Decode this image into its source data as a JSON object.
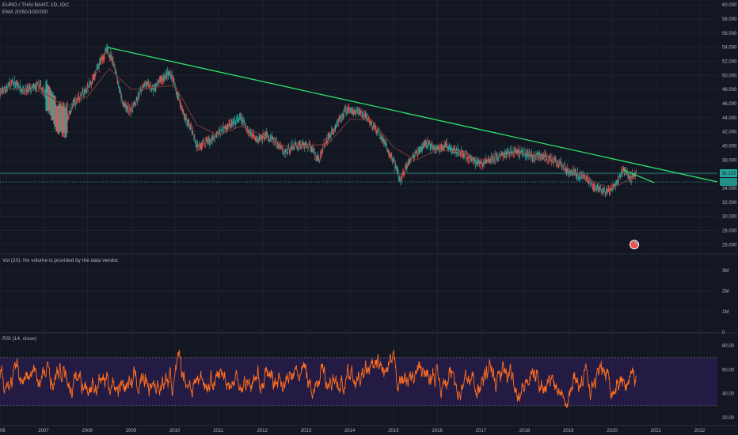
{
  "header": {
    "title": "EURO / THAI BAHT, 1D, IDC",
    "indicator": "EMA 20/50/100/200"
  },
  "volume_pane": {
    "label": "Vol (20): No volume is provided by the data vendor.",
    "ticks": [
      "3M",
      "2M",
      "1M",
      "0"
    ]
  },
  "rsi_pane": {
    "label": "RSI (14, close)",
    "ticks": [
      "80.00",
      "60.00",
      "40.00",
      "20.00"
    ]
  },
  "colors": {
    "background": "#131722",
    "trendline": "#2fe06a",
    "candle_up": "#26a69a",
    "candle_down": "#ef5350",
    "rsi": "#ff6d1f",
    "rsi_band": "#2a1d4f",
    "price_badge": "#26a69a"
  },
  "chart_data": [
    {
      "type": "candlestick",
      "title": "EURO / THAI BAHT, 1D, IDC",
      "xlabel": "",
      "ylabel": "",
      "x_ticks": [
        "06",
        "2007",
        "2008",
        "2009",
        "2010",
        "2011",
        "2012",
        "2013",
        "2014",
        "2015",
        "2016",
        "2017",
        "2018",
        "2019",
        "2020",
        "2021",
        "2022"
      ],
      "y_ticks": [
        "60.000",
        "58.000",
        "56.000",
        "54.000",
        "52.000",
        "50.000",
        "48.000",
        "46.000",
        "44.000",
        "42.000",
        "40.000",
        "38.000",
        "36.000",
        "34.000",
        "32.000",
        "30.000",
        "28.000",
        "26.000"
      ],
      "xlim": [
        2006.0,
        2022.4
      ],
      "ylim": [
        24.8,
        60.7
      ],
      "last_price": "36.133",
      "price_path": [
        [
          2006.0,
          47.5
        ],
        [
          2006.3,
          49.0
        ],
        [
          2006.6,
          47.8
        ],
        [
          2006.9,
          48.6
        ],
        [
          2007.1,
          47.0
        ],
        [
          2007.3,
          44.0
        ],
        [
          2007.5,
          43.6
        ],
        [
          2007.7,
          46.2
        ],
        [
          2007.9,
          47.4
        ],
        [
          2008.1,
          49.0
        ],
        [
          2008.3,
          52.0
        ],
        [
          2008.45,
          53.6
        ],
        [
          2008.6,
          52.0
        ],
        [
          2008.8,
          46.0
        ],
        [
          2008.95,
          45.0
        ],
        [
          2009.1,
          46.0
        ],
        [
          2009.3,
          49.0
        ],
        [
          2009.5,
          48.0
        ],
        [
          2009.7,
          49.5
        ],
        [
          2009.9,
          50.4
        ],
        [
          2010.0,
          48.5
        ],
        [
          2010.2,
          44.5
        ],
        [
          2010.4,
          42.0
        ],
        [
          2010.5,
          40.0
        ],
        [
          2010.7,
          40.5
        ],
        [
          2010.9,
          41.0
        ],
        [
          2011.1,
          42.5
        ],
        [
          2011.3,
          43.0
        ],
        [
          2011.5,
          44.0
        ],
        [
          2011.7,
          42.0
        ],
        [
          2011.9,
          41.0
        ],
        [
          2012.1,
          41.5
        ],
        [
          2012.3,
          40.6
        ],
        [
          2012.5,
          39.0
        ],
        [
          2012.7,
          40.0
        ],
        [
          2012.9,
          40.2
        ],
        [
          2013.1,
          40.0
        ],
        [
          2013.3,
          38.0
        ],
        [
          2013.4,
          40.0
        ],
        [
          2013.7,
          43.0
        ],
        [
          2013.9,
          45.0
        ],
        [
          2014.1,
          45.0
        ],
        [
          2014.3,
          44.5
        ],
        [
          2014.5,
          43.0
        ],
        [
          2014.7,
          41.5
        ],
        [
          2014.9,
          39.0
        ],
        [
          2015.05,
          37.0
        ],
        [
          2015.15,
          35.0
        ],
        [
          2015.35,
          38.0
        ],
        [
          2015.55,
          39.0
        ],
        [
          2015.75,
          40.5
        ],
        [
          2015.95,
          39.5
        ],
        [
          2016.2,
          40.0
        ],
        [
          2016.4,
          39.5
        ],
        [
          2016.6,
          38.8
        ],
        [
          2016.8,
          38.0
        ],
        [
          2017.0,
          37.5
        ],
        [
          2017.2,
          38.0
        ],
        [
          2017.4,
          38.5
        ],
        [
          2017.6,
          39.0
        ],
        [
          2017.8,
          39.3
        ],
        [
          2018.0,
          39.0
        ],
        [
          2018.2,
          38.5
        ],
        [
          2018.4,
          38.7
        ],
        [
          2018.6,
          38.0
        ],
        [
          2018.8,
          37.5
        ],
        [
          2019.0,
          36.5
        ],
        [
          2019.2,
          36.0
        ],
        [
          2019.4,
          35.5
        ],
        [
          2019.6,
          34.0
        ],
        [
          2019.8,
          33.5
        ],
        [
          2019.95,
          33.8
        ],
        [
          2020.1,
          34.5
        ],
        [
          2020.25,
          36.8
        ],
        [
          2020.4,
          35.5
        ],
        [
          2020.55,
          36.1
        ]
      ],
      "ema_path": [
        [
          2006.0,
          48.0
        ],
        [
          2006.5,
          48.2
        ],
        [
          2007.0,
          47.6
        ],
        [
          2007.5,
          45.5
        ],
        [
          2008.0,
          47.0
        ],
        [
          2008.5,
          51.0
        ],
        [
          2009.0,
          48.0
        ],
        [
          2009.5,
          48.3
        ],
        [
          2010.0,
          48.6
        ],
        [
          2010.5,
          43.0
        ],
        [
          2011.0,
          41.5
        ],
        [
          2011.5,
          42.8
        ],
        [
          2012.0,
          41.5
        ],
        [
          2012.5,
          40.0
        ],
        [
          2013.0,
          40.0
        ],
        [
          2013.5,
          40.3
        ],
        [
          2014.0,
          43.8
        ],
        [
          2014.5,
          43.6
        ],
        [
          2015.0,
          39.8
        ],
        [
          2015.5,
          38.0
        ],
        [
          2016.0,
          39.4
        ],
        [
          2016.5,
          39.2
        ],
        [
          2017.0,
          38.0
        ],
        [
          2017.5,
          38.6
        ],
        [
          2018.0,
          39.0
        ],
        [
          2018.5,
          38.4
        ],
        [
          2019.0,
          36.8
        ],
        [
          2019.5,
          35.0
        ],
        [
          2020.0,
          34.0
        ],
        [
          2020.5,
          35.6
        ]
      ],
      "trendlines": [
        {
          "from": [
            2008.45,
            54.0
          ],
          "to": [
            2022.4,
            34.9
          ]
        },
        {
          "from": [
            2020.25,
            36.6
          ],
          "to": [
            2020.95,
            34.8
          ]
        }
      ],
      "horizontal_lines": [
        {
          "y": 36.133,
          "style": "solid"
        },
        {
          "y": 34.9,
          "style": "dotted"
        }
      ],
      "marker": {
        "x": 2020.5,
        "y": 26.0
      }
    },
    {
      "type": "line",
      "title": "RSI (14, close)",
      "y_ticks": [
        "80.00",
        "60.00",
        "40.00",
        "20.00"
      ],
      "ylim": [
        14,
        90
      ],
      "overbought": 70,
      "oversold": 30,
      "x_range": [
        2006.0,
        2020.55
      ]
    }
  ]
}
